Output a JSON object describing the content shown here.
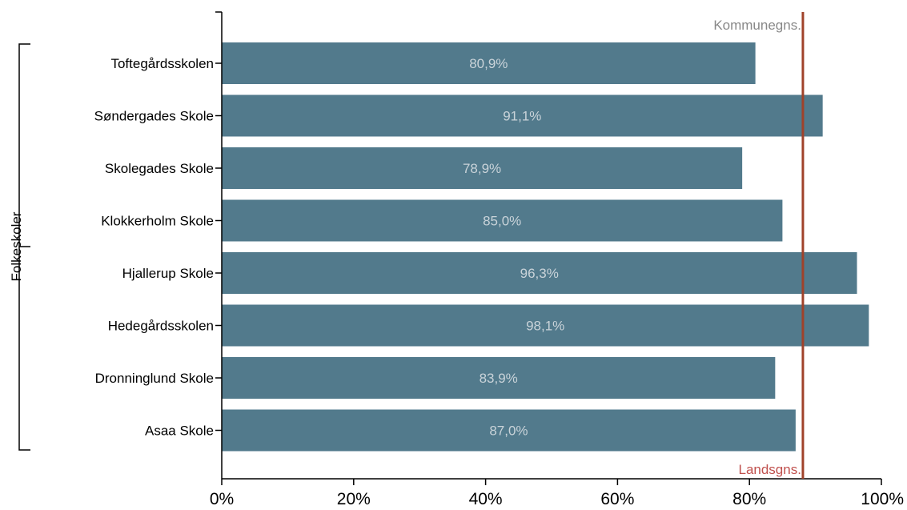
{
  "chart_data": {
    "type": "bar",
    "orientation": "horizontal",
    "categories": [
      "Toftegårdsskolen",
      "Søndergades Skole",
      "Skolegades Skole",
      "Klokkerholm Skole",
      "Hjallerup Skole",
      "Hedegårdsskolen",
      "Dronninglund Skole",
      "Asaa Skole"
    ],
    "values": [
      80.9,
      91.1,
      78.9,
      85.0,
      96.3,
      98.1,
      83.9,
      87.0
    ],
    "data_labels": [
      "80,9%",
      "91,1%",
      "78,9%",
      "85,0%",
      "96,3%",
      "98,1%",
      "83,9%",
      "87,0%"
    ],
    "xlim": [
      0,
      100
    ],
    "x_ticks": [
      0,
      20,
      40,
      60,
      80,
      100
    ],
    "x_tick_labels": [
      "0%",
      "20%",
      "40%",
      "60%",
      "80%",
      "100%"
    ],
    "group_label": "Folkeskoler",
    "reference_lines": [
      {
        "label": "Kommunegns.",
        "value": 88.1,
        "color": "#888888"
      },
      {
        "label": "Landsgns.",
        "value": 88.1,
        "color": "#c0504d"
      }
    ],
    "bar_color": "#527a8c",
    "reference_line_color": "#a0422a",
    "grid": false,
    "legend": "none"
  }
}
